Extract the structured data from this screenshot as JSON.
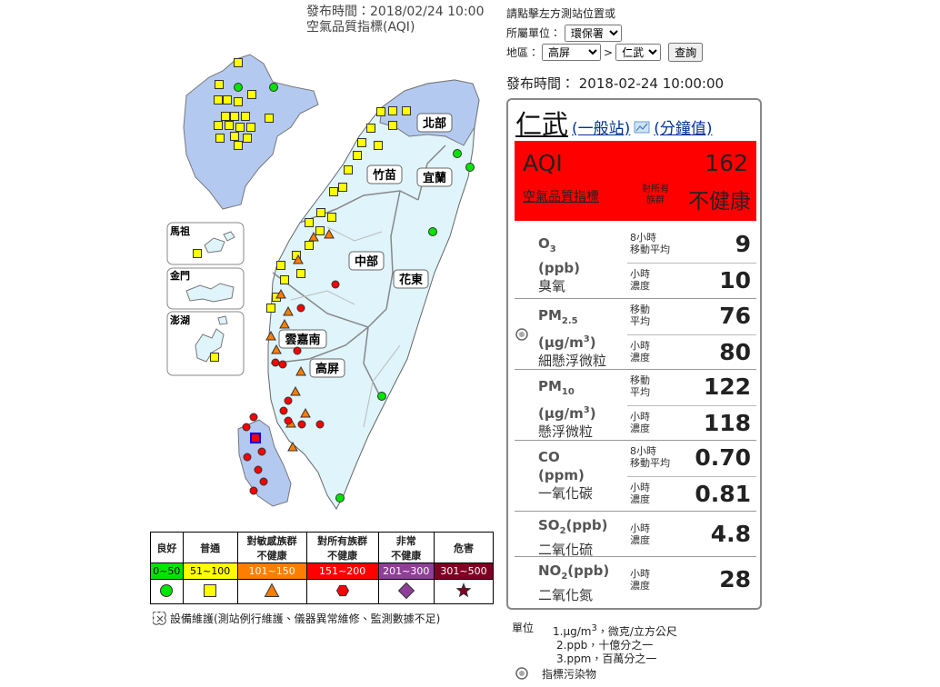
{
  "header": {
    "publish_time": "發布時間：2018/02/24 10:00",
    "title": "空氣品質指標(AQI)"
  },
  "map": {
    "regions": [
      "北部",
      "竹苗",
      "宜蘭",
      "中部",
      "花東",
      "雲嘉南",
      "高屏"
    ],
    "islands": [
      "馬祖",
      "金門",
      "澎湖"
    ]
  },
  "legend": {
    "levels": [
      {
        "label": [
          "良好"
        ],
        "range": "0~50",
        "color": "#00e400"
      },
      {
        "label": [
          "普通"
        ],
        "range": "51~100",
        "color": "#ffff00"
      },
      {
        "label": [
          "對敏感族群",
          "不健康"
        ],
        "range": "101~150",
        "color": "#ff7e00"
      },
      {
        "label": [
          "對所有族群",
          "不健康"
        ],
        "range": "151~200",
        "color": "#ff0000"
      },
      {
        "label": [
          "非常",
          "不健康"
        ],
        "range": "201~300",
        "color": "#8f3f97"
      },
      {
        "label": [
          "危害"
        ],
        "range": "301~500",
        "color": "#7e0023"
      }
    ],
    "maintenance_note": "設備維護(測站例行維護、儀器異常維修、監測數據不足)"
  },
  "query": {
    "prompt": "請點擊左方測站位置或",
    "agency_label": "所屬單位：",
    "agency": "環保署",
    "area_label": "地區：",
    "county": "高屏",
    "separator": ">",
    "station": "仁武",
    "button": "查詢"
  },
  "publish": "發布時間： 2018-02-24 10:00:00",
  "station": {
    "name": "仁武",
    "type": "(一般站)",
    "minute_link": "(分鐘值)",
    "aqi_label": "AQI",
    "aqi": "162",
    "aqi_desc": "空氣品質指標",
    "status_group": [
      "對所有",
      "族群"
    ],
    "status": "不健康"
  },
  "pollutants": [
    {
      "name": "O",
      "sub": "3",
      "unit": "(ppb)",
      "label": "臭氧",
      "readings": [
        {
          "period": [
            "8小時",
            "移動平均"
          ],
          "value": "9"
        },
        {
          "period": [
            "小時",
            "濃度"
          ],
          "value": "10"
        }
      ]
    },
    {
      "name": "PM",
      "sub": "2.5",
      "unit": "(μg/m",
      "unit_sup": "3",
      "unit_post": ")",
      "label": "細懸浮微粒",
      "indicator": true,
      "readings": [
        {
          "period": [
            "移動",
            "平均"
          ],
          "value": "76"
        },
        {
          "period": [
            "小時",
            "濃度"
          ],
          "value": "80"
        }
      ]
    },
    {
      "name": "PM",
      "sub": "10",
      "unit": "(μg/m",
      "unit_sup": "3",
      "unit_post": ")",
      "label": "懸浮微粒",
      "readings": [
        {
          "period": [
            "移動",
            "平均"
          ],
          "value": "122"
        },
        {
          "period": [
            "小時",
            "濃度"
          ],
          "value": "118"
        }
      ]
    },
    {
      "name": "CO",
      "unit": "(ppm)",
      "label": "一氧化碳",
      "readings": [
        {
          "period": [
            "8小時",
            "移動平均"
          ],
          "value": "0.70"
        },
        {
          "period": [
            "小時",
            "濃度"
          ],
          "value": "0.81"
        }
      ]
    },
    {
      "name": "SO",
      "sub": "2",
      "suffix": "(ppb)",
      "label": "二氧化硫",
      "readings": [
        {
          "period": [
            "小時",
            "濃度"
          ],
          "value": "4.8"
        }
      ]
    },
    {
      "name": "NO",
      "sub": "2",
      "suffix": "(ppb)",
      "label": "二氧化氮",
      "readings": [
        {
          "period": [
            "小時",
            "濃度"
          ],
          "value": "28"
        }
      ]
    }
  ],
  "units": {
    "label": "單位",
    "items": [
      {
        "text": "1.μg/m",
        "sup": "3",
        "post": "，微克/立方公尺"
      },
      {
        "text": "2.ppb，十億分之一"
      },
      {
        "text": "3.ppm，百萬分之一"
      }
    ],
    "indicator_note": "指標污染物"
  }
}
